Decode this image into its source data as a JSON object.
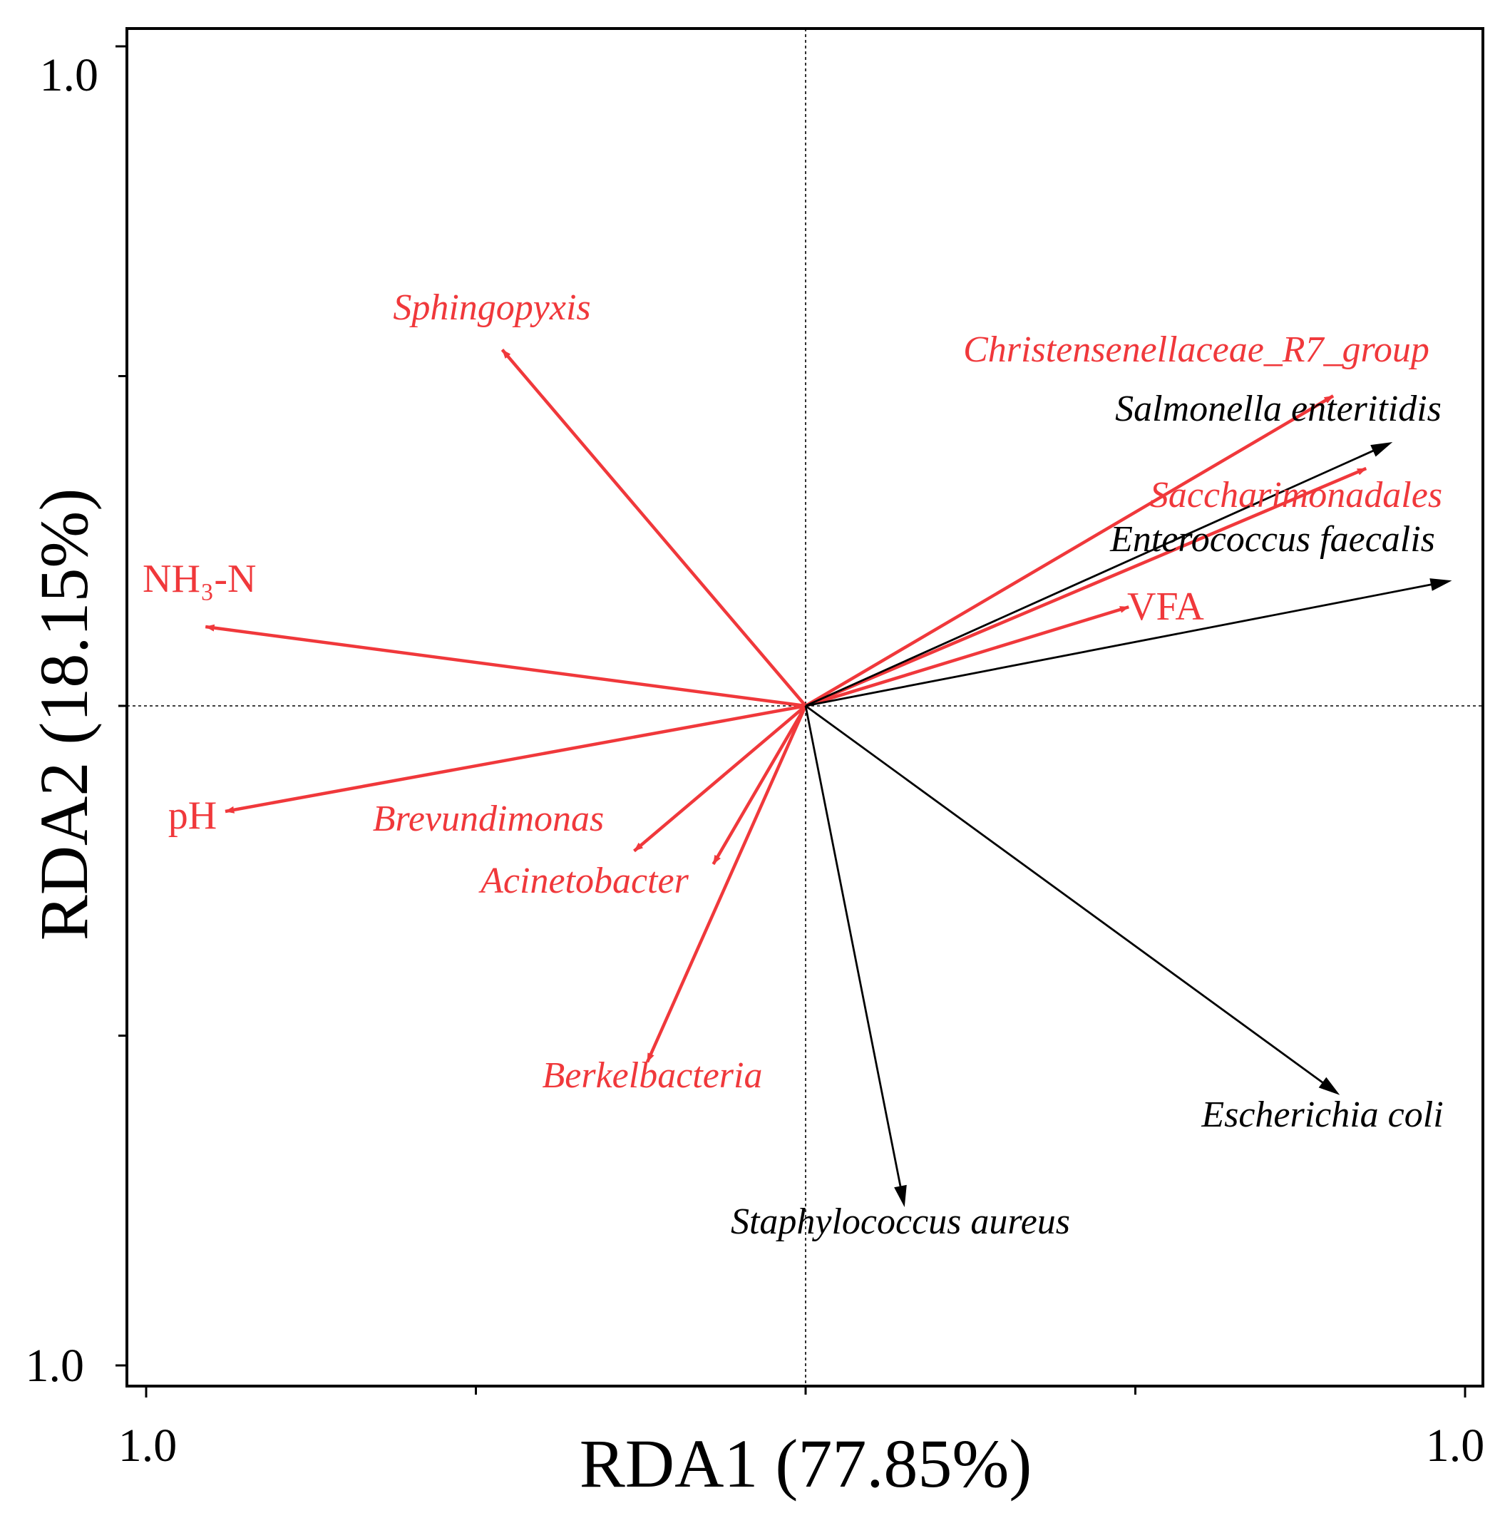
{
  "chart_data": {
    "type": "scatter",
    "subtype": "rda-biplot",
    "xlabel": "RDA1 (77.85%)",
    "ylabel": "RDA2 (18.15%)",
    "xlim": [
      -1.0,
      1.0
    ],
    "ylim": [
      -1.0,
      1.0
    ],
    "x_tick_labels": {
      "left": "1.0",
      "right": "1.0"
    },
    "y_tick_labels": {
      "top": "1.0",
      "bottom": "1.0"
    },
    "colors": {
      "environmental": "#f0383b",
      "pathogen": "#000000"
    },
    "series": [
      {
        "name": "environmental",
        "color": "#f0383b",
        "vectors": [
          {
            "label": "Sphingopyxis",
            "italic": true,
            "x": -0.46,
            "y": 0.54
          },
          {
            "label": "Christensenellaceae_R7_group",
            "italic": true,
            "x": 0.8,
            "y": 0.47
          },
          {
            "label": "Saccharimonadales",
            "italic": true,
            "x": 0.85,
            "y": 0.36
          },
          {
            "label": "VFA",
            "italic": false,
            "x": 0.49,
            "y": 0.15
          },
          {
            "label": "NH₃-N",
            "italic": false,
            "x": -0.91,
            "y": 0.12
          },
          {
            "label": "pH",
            "italic": false,
            "x": -0.88,
            "y": -0.16
          },
          {
            "label": "Brevundimonas",
            "italic": true,
            "x": -0.26,
            "y": -0.22
          },
          {
            "label": "Acinetobacter",
            "italic": true,
            "x": -0.14,
            "y": -0.24
          },
          {
            "label": "Berkelbacteria",
            "italic": true,
            "x": -0.24,
            "y": -0.54
          }
        ]
      },
      {
        "name": "pathogen",
        "color": "#000000",
        "vectors": [
          {
            "label": "Salmonella enteritidis",
            "italic": true,
            "x": 0.89,
            "y": 0.4
          },
          {
            "label": "Enterococcus faecalis",
            "italic": true,
            "x": 0.98,
            "y": 0.19
          },
          {
            "label": "Escherichia coli",
            "italic": true,
            "x": 0.81,
            "y": -0.59
          },
          {
            "label": "Staphylococcus aureus",
            "italic": true,
            "x": 0.15,
            "y": -0.76
          }
        ]
      }
    ]
  }
}
